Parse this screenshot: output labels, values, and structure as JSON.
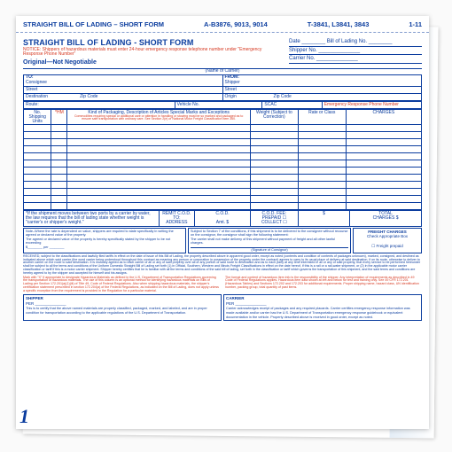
{
  "form": {
    "title_top": "STRAIGHT BILL OF LADING – SHORT FORM",
    "codes_a": "A-B3876, 9013, 9014",
    "codes_t": "T-3841, L3841, 3843",
    "codes_right": "1-11",
    "title": "STRAIGHT BILL OF LADING - SHORT FORM",
    "notice": "NOTICE: Shippers of hazardous materials must enter 24-hour emergency response telephone number under \"Emergency Response Phone Number\"",
    "original": "Original—Not Negotiable",
    "date_label": "Date",
    "bol_label": "Bill of Lading No.",
    "shipper_label": "Shipper No.",
    "carrierno_label": "Carrier No.",
    "carrier_caption": "(Name of Carrier)",
    "rows": {
      "to": "TO:",
      "consignee": "Consignee",
      "from": "FROM:",
      "shipper": "Shipper",
      "street": "Street",
      "destination": "Destination",
      "zip": "Zip Code",
      "origin": "Origin",
      "route": "Route:",
      "vehicle": "Vehicle No.",
      "scac": "SCAC",
      "erpn": "Emergency Response Phone Number"
    },
    "cols": {
      "units": "No. Shipping Units",
      "hm": "*HM",
      "desc": "Kind of Packaging, Description of Articles Special Marks and Exceptions",
      "desc_red": "Commodities requiring special or additional care or attention in handling or stowing must be so marked and packaged as to ensure safe transportation with ordinary care. See Section 2(e) of National Motor Freight Classification Item 360.",
      "weight": "Weight (Subject to Correction)",
      "rate": "Rate or Class",
      "charges": "CHARGES"
    },
    "data_row_count": 12,
    "remit": {
      "l1": "REMIT C.O.D.",
      "l2": "TO:",
      "l3": "ADDRESS",
      "cod": "C.O.D.",
      "amt": "Amt. $",
      "fee": "C.O.D. FEE:",
      "prepaid": "PREPAID ☐",
      "collect": "COLLECT ☐",
      "total": "TOTAL",
      "charges": "CHARGES  $"
    },
    "freight": {
      "title": "FREIGHT CHARGES",
      "line": "Check Appropriate Box",
      "prepaid": "☐ Freight prepaid"
    },
    "under": {
      "left1": "*If the shipment moves between two ports by a carrier by water, the law requires that the bill of lading state whether weight is \"carrier's or shipper's weight.\"",
      "left2": "Note–Where the rate is dependent on value, shippers are required to state specifically in writing the agreed or declared value of the property.",
      "left3": "The agreed or declared value of the property is hereby specifically stated by the shipper to be not exceeding",
      "per": "$________ per ________",
      "right1": "Subject to Section 7 of the conditions, if this shipment is to be delivered to the consignee without recourse on the consignor, the consignor shall sign the following statement:",
      "right2": "The carrier shall not make delivery of this shipment without payment of freight and all other lawful charges.",
      "sigcap": "(Signature of Consignor)"
    },
    "terms_blue": "RECEIVED, subject to the classifications and lawfully filed tariffs in effect on the date of issue of this Bill of Lading, the property described above in apparent good order, except as noted (contents and condition of contents of packages unknown), marked, consigned, and destined as indicated above which said carrier (the word carrier being understood throughout this contract as meaning any person or corporation in possession of the property under the contract) agrees to carry to its usual place of delivery at said destination, if on its route, otherwise to deliver to another carrier on the route to said destination. It is mutually agreed as to each carrier of all or any of said property over all or any portion of said route to destination and as to each party at any time interested in all or any of said property, that every service to be performed hereunder shall be subject to all the terms and conditions of the Uniform Domestic Straight Bill of Lading set forth (1) in Official, Southern, Western and Illinois Freight Classifications in effect on the date hereof, if this is a rail or a rail-water shipment, or (2) in the applicable motor carrier classification or tariff if this is a motor carrier shipment. Shipper hereby certifies that he is familiar with all the terms and conditions of the said bill of lading, set forth in the classification or tariff which governs the transportation of this shipment, and the said terms and conditions are hereby agreed to by the shipper and accepted for himself and his assigns.",
    "terms_red_left": "Mark with \"X\" if appropriate to designate Hazardous Materials as defined in the U.S. Department of Transportation Regulations governing the transportation of hazardous materials. The use of this column is an optional method for identifying hazardous materials on Bills of Lading per Section 172.201(a)(1)(iii) of Title 49, Code of Federal Regulations. Also when shipping hazardous materials, the shipper's certification statement prescribed in section 172.204(a) of the Federal Regulations, as indicated on the Bill of Lading, does not apply unless a specific exception from the requirement is provided in the Regulation for a particular material.",
    "terms_red_right": "The format and content of hazardous item info is the responsibility of the shipper. Any interpretation of requirements as described in 49 Code of Federal Regulations applies. Hazardous item data shown at left and below for test and training only. See 49 CFR 172.201 (Hazardous Tables) and Sections 172.202 and 172.203 for additional requirements. Proper shipping name, hazard class, UN identification number, packing group, total quantity of past items.",
    "sig": {
      "shipper": "SHIPPER",
      "carrier": "CARRIER",
      "per": "PER",
      "cert": "This is to certify that the above named materials are properly classified, packaged, marked, and labeled, and are in proper condition for transportation according to the applicable regulations of the U.S. Department of Transportation.",
      "ack": "Carrier acknowledges receipt of packages and any required placards. Carrier certifies emergency response information was made available and/or carrier has the U.S. Department of Transportation emergency response guidebook or equivalent documentation in the vehicle. Property described above is received in good order, except as noted."
    },
    "formnum": "1"
  }
}
